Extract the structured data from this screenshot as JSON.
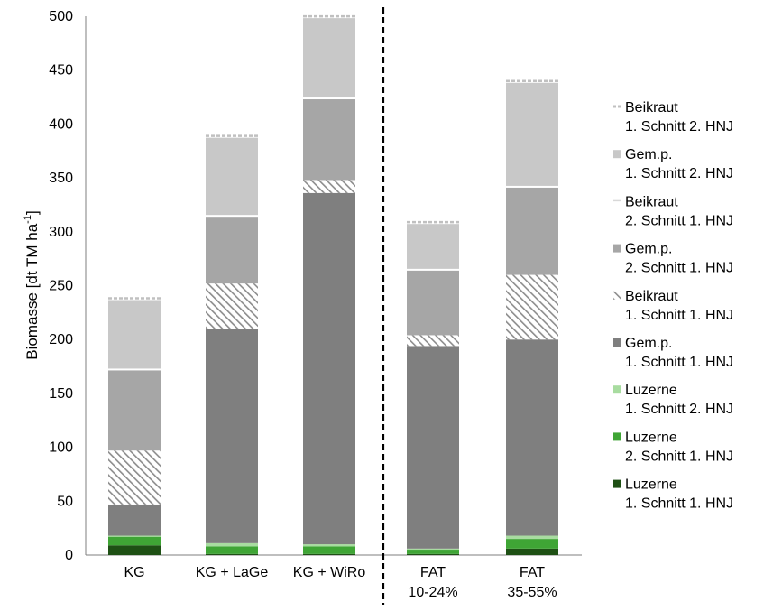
{
  "chart_data": {
    "type": "bar",
    "stacked": true,
    "ylabel": "Biomasse [dt TM ha",
    "ylabel_sup": "-1",
    "ylabel_close": "]",
    "ylim": [
      0,
      500
    ],
    "yticks": [
      "0",
      "50",
      "100",
      "150",
      "200",
      "250",
      "300",
      "350",
      "400",
      "450",
      "500"
    ],
    "categories": [
      {
        "line1": "KG",
        "line2": ""
      },
      {
        "line1": "KG + LaGe",
        "line2": ""
      },
      {
        "line1": "KG + WiRo",
        "line2": ""
      },
      {
        "line1": "FAT",
        "line2": "10-24%"
      },
      {
        "line1": "FAT",
        "line2": "35-55%"
      }
    ],
    "divider_after_category": 2,
    "legend_position": "right",
    "series": [
      {
        "name": "Luzerne",
        "sub": "1. Schnitt 1. HNJ",
        "color": "#1e5014",
        "pattern": "solid",
        "values": [
          9,
          1,
          1,
          1,
          6
        ]
      },
      {
        "name": "Luzerne",
        "sub": "2. Schnitt 1. HNJ",
        "color": "#3fa535",
        "pattern": "solid",
        "values": [
          8,
          7,
          7,
          4,
          9
        ]
      },
      {
        "name": "Luzerne",
        "sub": "1. Schnitt 2. HNJ",
        "color": "#a8dca0",
        "pattern": "solid",
        "values": [
          1,
          3,
          2,
          1,
          3
        ]
      },
      {
        "name": "Gem.p.",
        "sub": "1. Schnitt 1. HNJ",
        "color": "#7f7f7f",
        "pattern": "solid",
        "values": [
          29,
          199,
          326,
          188,
          182
        ]
      },
      {
        "name": "Beikraut",
        "sub": "1. Schnitt 1. HNJ",
        "color": "#a0a0a0",
        "pattern": "hatch",
        "values": [
          50,
          42,
          12,
          10,
          60
        ]
      },
      {
        "name": "Gem.p.",
        "sub": "2. Schnitt 1. HNJ",
        "color": "#a6a6a6",
        "pattern": "solid",
        "values": [
          76,
          63,
          76,
          61,
          82
        ]
      },
      {
        "name": "Beikraut",
        "sub": "2. Schnitt 1. HNJ",
        "color": "#ffffff",
        "pattern": "solid",
        "values": [
          0,
          0.6,
          0.6,
          0.6,
          0.6
        ]
      },
      {
        "name": "Gem.p.",
        "sub": "1. Schnitt 2. HNJ",
        "color": "#c8c8c8",
        "pattern": "solid",
        "values": [
          65,
          73,
          75,
          43,
          97
        ]
      },
      {
        "name": "Beikraut",
        "sub": "1. Schnitt 2. HNJ",
        "color": "#d0d0d0",
        "pattern": "dashed-top",
        "values": [
          0.3,
          0.3,
          0.3,
          0.3,
          0.3
        ]
      }
    ]
  }
}
